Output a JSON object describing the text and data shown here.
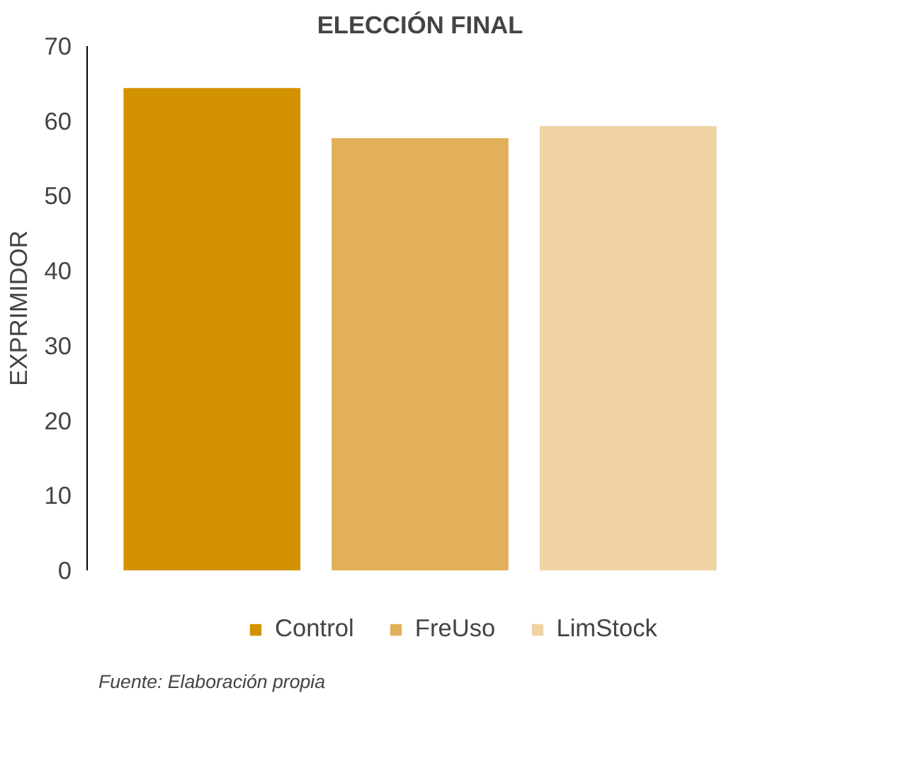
{
  "chart_data": {
    "type": "bar",
    "title": "ELECCIÓN FINAL",
    "ylabel": "EXPRIMIDOR",
    "categories": [
      null
    ],
    "series": [
      {
        "name": "Control",
        "color": "#d39200",
        "values": [
          64.4
        ]
      },
      {
        "name": "FreUso",
        "color": "#e2b05a",
        "values": [
          57.7
        ]
      },
      {
        "name": "LimStock",
        "color": "#efd3a3",
        "values": [
          59.3
        ]
      }
    ],
    "ylim": [
      0,
      70
    ],
    "yticks": [
      0,
      10,
      20,
      30,
      40,
      50,
      60,
      70
    ],
    "grid": false,
    "legend": "bottom",
    "annotations": [
      "Fuente: Elaboración propia"
    ]
  }
}
